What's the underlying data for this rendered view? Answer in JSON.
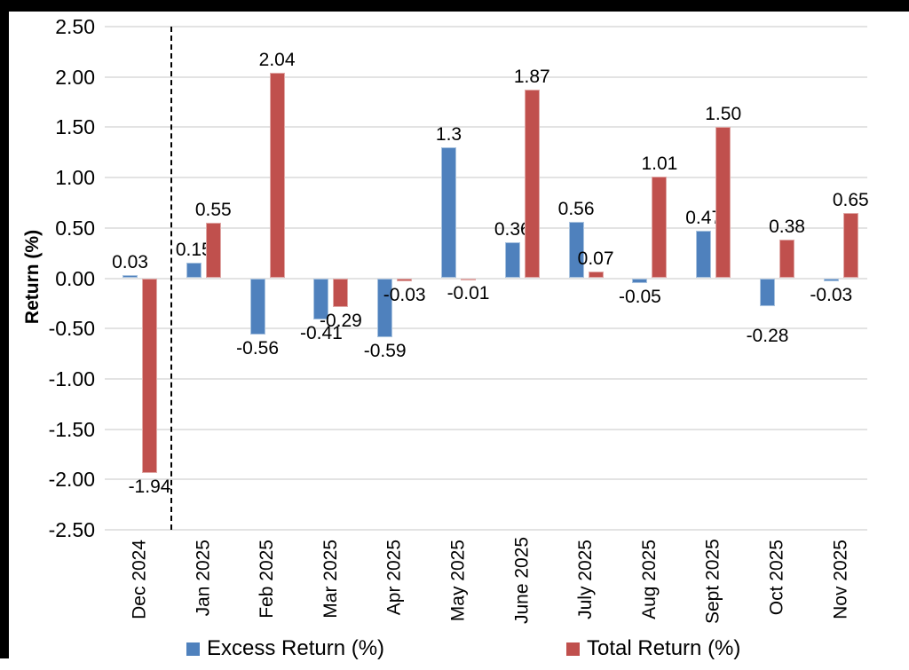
{
  "chart_data": {
    "type": "bar",
    "title": "",
    "ylabel": "Return (%)",
    "ylim": [
      -2.5,
      2.5
    ],
    "ytick_step": 0.5,
    "grid": true,
    "legend_position": "bottom",
    "yticks": [
      {
        "value": 2.5,
        "label": "2.50"
      },
      {
        "value": 2.0,
        "label": "2.00"
      },
      {
        "value": 1.5,
        "label": "1.50"
      },
      {
        "value": 1.0,
        "label": "1.00"
      },
      {
        "value": 0.5,
        "label": "0.50"
      },
      {
        "value": 0.0,
        "label": "0.00"
      },
      {
        "value": -0.5,
        "label": "-0.50"
      },
      {
        "value": -1.0,
        "label": "-1.00"
      },
      {
        "value": -1.5,
        "label": "-1.50"
      },
      {
        "value": -2.0,
        "label": "-2.00"
      },
      {
        "value": -2.5,
        "label": "-2.50"
      }
    ],
    "categories": [
      "Dec 2024",
      "Jan 2025",
      "Feb 2025",
      "Mar 2025",
      "Apr 2025",
      "May 2025",
      "June 2025",
      "July 2025",
      "Aug 2025",
      "Sept 2025",
      "Oct 2025",
      "Nov 2025"
    ],
    "separator_after_category": 0,
    "series": [
      {
        "name": "Excess Return (%)",
        "color": "#4F81BD",
        "border_color": "#A9C3DF",
        "values": [
          0.03,
          0.15,
          -0.56,
          -0.41,
          -0.59,
          1.3,
          0.36,
          0.56,
          -0.05,
          0.47,
          -0.28,
          -0.03
        ],
        "labels": [
          "0.03",
          "0.15",
          "-0.56",
          "-0.41",
          "-0.59",
          "1.3",
          "0.36",
          "0.56",
          "-0.05",
          "0.47",
          "-0.28",
          "-0.03"
        ],
        "label_dy": {
          "10": 18
        }
      },
      {
        "name": "Total Return (%)",
        "color": "#C0504D",
        "border_color": "#E0A8A6",
        "values": [
          -1.94,
          0.55,
          2.04,
          -0.29,
          -0.03,
          -0.01,
          1.87,
          0.07,
          1.01,
          1.5,
          0.38,
          0.65
        ],
        "labels": [
          "-1.94",
          "0.55",
          "2.04",
          "-0.29",
          "-0.03",
          "-0.01",
          "1.87",
          "0.07",
          "1.01",
          "1.50",
          "0.38",
          "0.65"
        ]
      }
    ]
  }
}
